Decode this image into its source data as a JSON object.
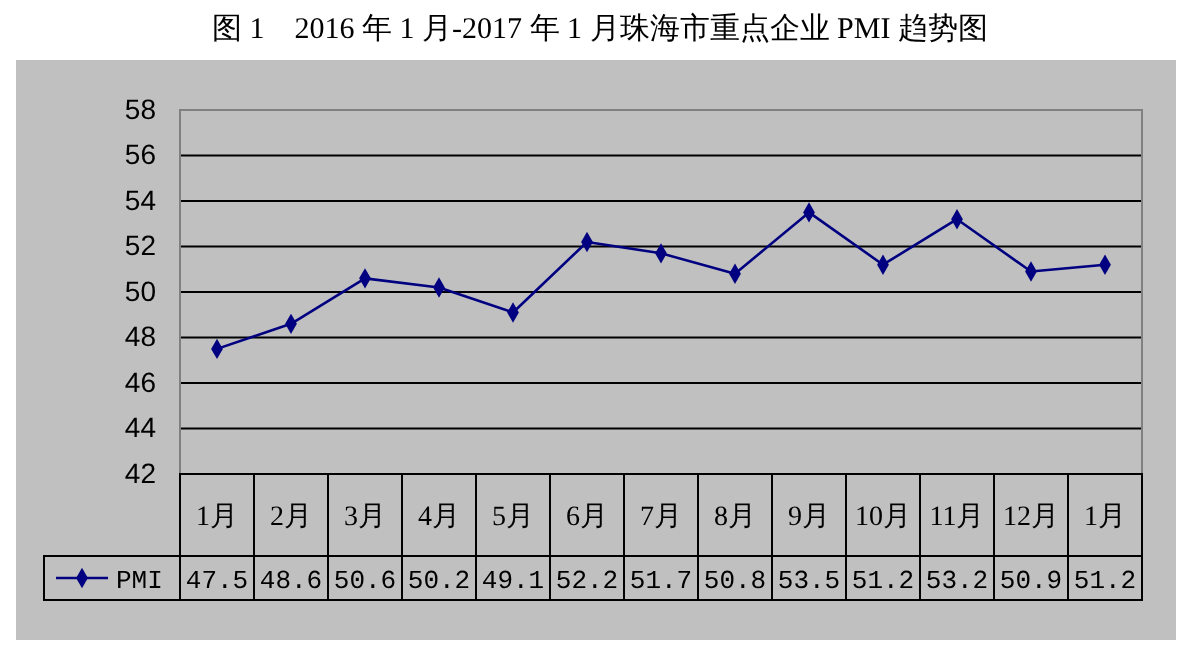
{
  "chart_data": {
    "type": "line",
    "title": "图 1　2016 年 1 月-2017 年 1 月珠海市重点企业 PMI 趋势图",
    "categories": [
      "1月",
      "2月",
      "3月",
      "4月",
      "5月",
      "6月",
      "7月",
      "8月",
      "9月",
      "10月",
      "11月",
      "12月",
      "1月"
    ],
    "series": [
      {
        "name": "PMI",
        "color": "#000080",
        "values": [
          47.5,
          48.6,
          50.6,
          50.2,
          49.1,
          52.2,
          51.7,
          50.8,
          53.5,
          51.2,
          53.2,
          50.9,
          51.2
        ]
      }
    ],
    "ylim": [
      42,
      58
    ],
    "yticks": [
      42,
      44,
      46,
      48,
      50,
      52,
      54,
      56,
      58
    ],
    "grid": "y",
    "marker": "diamond",
    "line_style": "solid",
    "legend": "bottom",
    "data_labels": true
  }
}
